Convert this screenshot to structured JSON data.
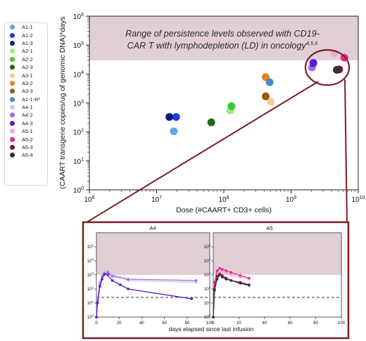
{
  "chart_data": [
    {
      "type": "scatter",
      "xscale": "log",
      "yscale": "log",
      "xlabel": "Dose (#CAART+ CD3+ cells)",
      "ylabel": "(CAART transgene copies/ug of genomic DNA)*days",
      "xlim": [
        1000000,
        10000000000
      ],
      "ylim": [
        1,
        1000000
      ],
      "x_tick_labels": [
        "10^6",
        "10^7",
        "10^8",
        "10^9",
        "10^10"
      ],
      "y_tick_labels": [
        "10^0",
        "10^1",
        "10^2",
        "10^3",
        "10^4",
        "10^5",
        "10^6"
      ],
      "grid": false,
      "legend_position": "left",
      "band": {
        "ymin": 30000,
        "ymax": 1000000,
        "color": "#e0d0d3",
        "text_line1": "Range of persistence levels observed with CD19-",
        "text_line2": "CAR T with lymphodepletion (LD) in oncology",
        "superscript": "4,5,6"
      },
      "series": [
        {
          "name": "A1-1",
          "color": "#5aa8e8",
          "points": [
            [
              18000000,
              105
            ]
          ]
        },
        {
          "name": "A1-2",
          "color": "#1a3fd8",
          "points": [
            [
              19500000,
              330
            ]
          ]
        },
        {
          "name": "A1-3",
          "color": "#0b1a7a",
          "points": [
            [
              15500000,
              330
            ]
          ]
        },
        {
          "name": "A2-1",
          "color": "#98ec82",
          "points": [
            [
              125000000,
              550
            ]
          ]
        },
        {
          "name": "A2-2",
          "color": "#3cc830",
          "points": [
            [
              130000000,
              780
            ]
          ]
        },
        {
          "name": "A2-3",
          "color": "#1c6a16",
          "points": [
            [
              65000000,
              215
            ]
          ]
        },
        {
          "name": "A3-1",
          "color": "#f7cc94",
          "points": [
            [
              500000000,
              1100
            ]
          ]
        },
        {
          "name": "A3-2",
          "color": "#e0821a",
          "points": [
            [
              420000000,
              7800
            ]
          ]
        },
        {
          "name": "A3-3",
          "color": "#9c5410",
          "points": [
            [
              420000000,
              1700
            ]
          ]
        },
        {
          "name": "A1-1-R*",
          "color": "#4a88c8",
          "points": [
            [
              480000000,
              5200
            ]
          ]
        },
        {
          "name": "A4-1",
          "color": "#cfc4f2",
          "points": [
            [
              2100000000,
              28000
            ]
          ]
        },
        {
          "name": "A4-2",
          "color": "#9470e0",
          "points": [
            [
              2050000000,
              17000
            ]
          ]
        },
        {
          "name": "A4-3",
          "color": "#5a18d0",
          "points": [
            [
              2150000000,
              24000
            ]
          ]
        },
        {
          "name": "A5-1",
          "color": "#f6a6d0",
          "points": [
            [
              4400000000,
              53000
            ]
          ]
        },
        {
          "name": "A5-2",
          "color": "#e8288a",
          "points": [
            [
              6200000000,
              37000
            ]
          ]
        },
        {
          "name": "A5-3",
          "color": "#8e1040",
          "points": [
            [
              5200000000,
              14500
            ]
          ]
        },
        {
          "name": "A5-4",
          "color": "#333333",
          "points": [
            [
              4800000000,
              14000
            ]
          ]
        }
      ]
    },
    {
      "type": "line",
      "title": "A4",
      "xlabel": "days elapsed since last infusion",
      "xscale": "linear",
      "yscale": "log",
      "xlim": [
        0,
        100
      ],
      "ylim": [
        1,
        1000000
      ],
      "x_tick_labels": [
        "0",
        "20",
        "40",
        "60",
        "80",
        "100"
      ],
      "y_tick_labels": [
        "10^0",
        "10^1",
        "10^2",
        "10^3",
        "10^4",
        "10^5"
      ],
      "threshold_y": 25,
      "band": {
        "ymin": 1000,
        "ymax": 1000000
      },
      "series": [
        {
          "name": "A4-1",
          "color": "#c8bcf0",
          "x": [
            0,
            1,
            3,
            5,
            7,
            10,
            14,
            21,
            28,
            88
          ],
          "y": [
            1,
            20,
            300,
            700,
            1500,
            2000,
            1000,
            700,
            400,
            300
          ]
        },
        {
          "name": "A4-2",
          "color": "#9470e0",
          "x": [
            0,
            1,
            3,
            5,
            7,
            10,
            14,
            28,
            88
          ],
          "y": [
            1,
            15,
            200,
            800,
            1000,
            1500,
            800,
            500,
            400
          ]
        },
        {
          "name": "A4-3",
          "color": "#5a18d0",
          "x": [
            0,
            1,
            3,
            5,
            7,
            10,
            14,
            21,
            28,
            84
          ],
          "y": [
            1,
            10,
            150,
            500,
            1200,
            1000,
            400,
            200,
            100,
            20
          ]
        }
      ]
    },
    {
      "type": "line",
      "title": "A5",
      "xlabel": "days elapsed since last infusion",
      "xscale": "linear",
      "yscale": "log",
      "xlim": [
        0,
        100
      ],
      "ylim": [
        1,
        1000000
      ],
      "x_tick_labels": [
        "0",
        "20",
        "40",
        "60",
        "80",
        "100"
      ],
      "y_tick_labels": [
        "10^0",
        "10^1",
        "10^2",
        "10^3",
        "10^4",
        "10^5"
      ],
      "threshold_y": 25,
      "band": {
        "ymin": 1000,
        "ymax": 1000000
      },
      "series": [
        {
          "name": "A5-1",
          "color": "#f6a6d0",
          "x": [
            0,
            1,
            3,
            5,
            7,
            10,
            14,
            21,
            28
          ],
          "y": [
            1,
            200,
            1500,
            2500,
            2000,
            1500,
            1000,
            700,
            500
          ]
        },
        {
          "name": "A5-2",
          "color": "#e8288a",
          "x": [
            0,
            1,
            3,
            5,
            7,
            10,
            14,
            21,
            28
          ],
          "y": [
            1,
            300,
            2000,
            3000,
            2500,
            2000,
            1500,
            900,
            600
          ]
        },
        {
          "name": "A5-3",
          "color": "#8e1040",
          "x": [
            0,
            1,
            3,
            5,
            7,
            10,
            14,
            21,
            28
          ],
          "y": [
            1,
            100,
            800,
            1200,
            900,
            600,
            400,
            300,
            200
          ]
        },
        {
          "name": "A5-4",
          "color": "#333333",
          "x": [
            0,
            1,
            3,
            5,
            7,
            10,
            14,
            21,
            28
          ],
          "y": [
            1,
            80,
            500,
            1000,
            700,
            500,
            400,
            250,
            180
          ]
        }
      ]
    }
  ]
}
